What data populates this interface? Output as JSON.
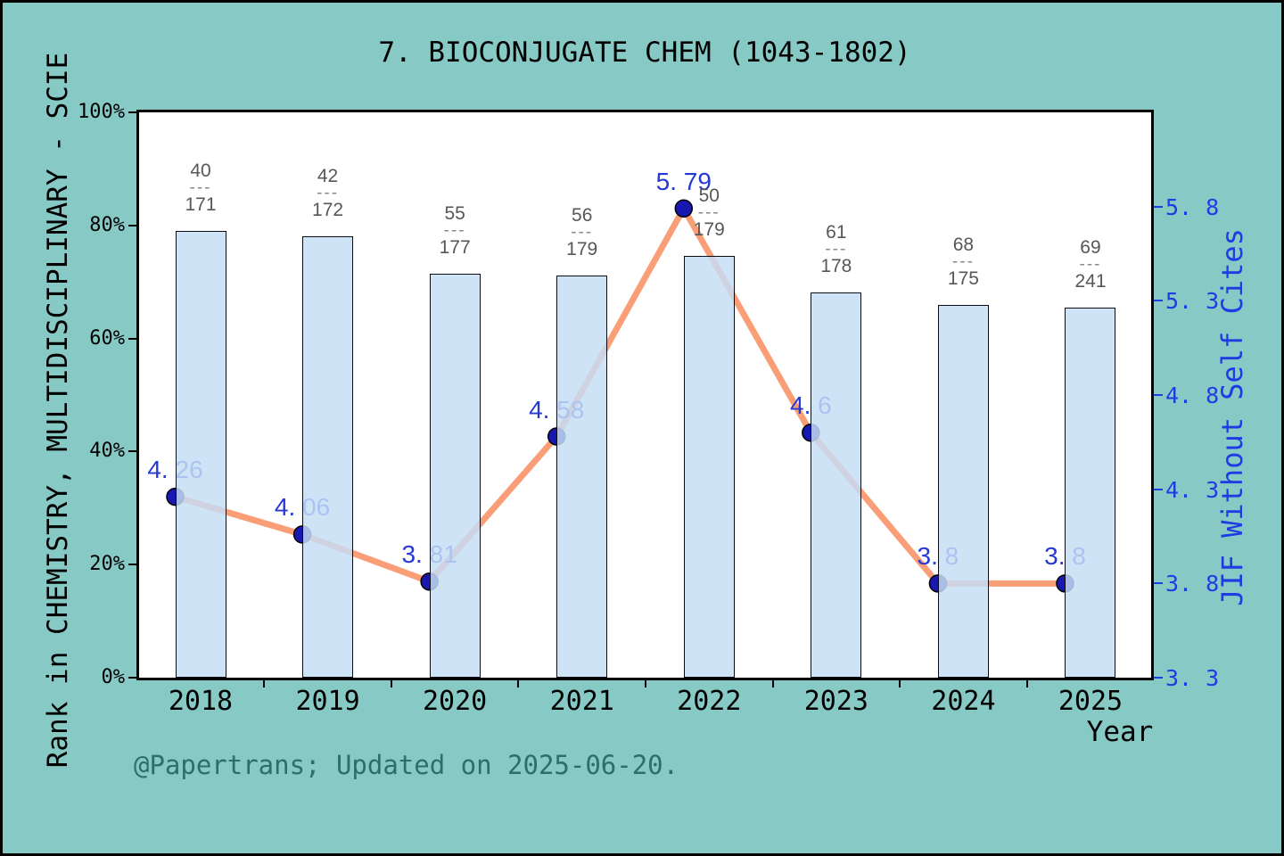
{
  "ui": {
    "title": "7. BIOCONJUGATE CHEM (1043-1802)",
    "attribution": "@Papertrans; Updated on 2025-06-20.",
    "fraction_dash": "---"
  },
  "chart_data": {
    "type": "bar+line",
    "title": "7. BIOCONJUGATE CHEM (1043-1802)",
    "categories": [
      "2018",
      "2019",
      "2020",
      "2021",
      "2022",
      "2023",
      "2024",
      "2025"
    ],
    "points": [
      {
        "year": "2018",
        "rank_numerator": "40",
        "rank_denominator": "171",
        "bar_percent": 79.1,
        "jif": 4.26,
        "jif_label": "4. 26"
      },
      {
        "year": "2019",
        "rank_numerator": "42",
        "rank_denominator": "172",
        "bar_percent": 78.1,
        "jif": 4.06,
        "jif_label": "4. 06"
      },
      {
        "year": "2020",
        "rank_numerator": "55",
        "rank_denominator": "177",
        "bar_percent": 71.4,
        "jif": 3.81,
        "jif_label": "3. 81"
      },
      {
        "year": "2021",
        "rank_numerator": "56",
        "rank_denominator": "179",
        "bar_percent": 71.2,
        "jif": 4.58,
        "jif_label": "4. 58"
      },
      {
        "year": "2022",
        "rank_numerator": "50",
        "rank_denominator": "179",
        "bar_percent": 74.6,
        "jif": 5.79,
        "jif_label": "5. 79"
      },
      {
        "year": "2023",
        "rank_numerator": "61",
        "rank_denominator": "178",
        "bar_percent": 68.1,
        "jif": 4.6,
        "jif_label": "4. 6"
      },
      {
        "year": "2024",
        "rank_numerator": "68",
        "rank_denominator": "175",
        "bar_percent": 66.0,
        "jif": 3.8,
        "jif_label": "3. 8"
      },
      {
        "year": "2025",
        "rank_numerator": "69",
        "rank_denominator": "241",
        "bar_percent": 65.5,
        "jif": 3.8,
        "jif_label": "3. 8"
      }
    ],
    "series": [
      {
        "name": "Rank in CHEMISTRY, MULTIDISCIPLINARY - SCIE",
        "type": "bar",
        "axis": "left",
        "unit": "percentile",
        "values": [
          79.1,
          78.1,
          71.4,
          71.2,
          74.6,
          68.1,
          66.0,
          65.5
        ],
        "rank_fractions": [
          "40/171",
          "42/172",
          "55/177",
          "56/179",
          "50/179",
          "61/178",
          "68/175",
          "69/241"
        ]
      },
      {
        "name": "JIF Without Self Cites",
        "type": "line",
        "axis": "right",
        "values": [
          4.26,
          4.06,
          3.81,
          4.58,
          5.79,
          4.6,
          3.8,
          3.8
        ],
        "point_labels": [
          "4. 26",
          "4. 06",
          "3. 81",
          "4. 58",
          "5. 79",
          "4. 6",
          "3. 8",
          "3. 8"
        ]
      }
    ],
    "left_axis": {
      "label": "Rank in CHEMISTRY, MULTIDISCIPLINARY - SCIE",
      "ticks": [
        "0%",
        "20%",
        "40%",
        "60%",
        "80%",
        "100%"
      ],
      "min": 0,
      "max": 100
    },
    "right_axis": {
      "label": "JIF Without Self Cites",
      "tick_labels": [
        "3. 3",
        "3. 8",
        "4. 3",
        "4. 8",
        "5. 3",
        "5. 8"
      ],
      "tick_values": [
        3.3,
        3.8,
        4.3,
        4.8,
        5.3,
        5.8
      ],
      "min": 3.3,
      "max": 6.3,
      "step": 0.5
    },
    "x_axis": {
      "label": "Year"
    },
    "grid": false,
    "legend": false
  },
  "colors": {
    "background": "#87CAC5",
    "plot_background": "#FFFFFF",
    "frame": "#000000",
    "bar_fill": "rgba(198,222,246,0.84)",
    "bar_border": "#0B0B16",
    "line": "#FA9E77",
    "marker": "#1818B0",
    "marker_border": "#000000",
    "value_label": "#2638D4",
    "fraction_text": "#575757",
    "fraction_dash": "#8A8A8A",
    "right_axis": "#1F3BE3",
    "attribution": "#2D6E68",
    "text": "#000000"
  }
}
